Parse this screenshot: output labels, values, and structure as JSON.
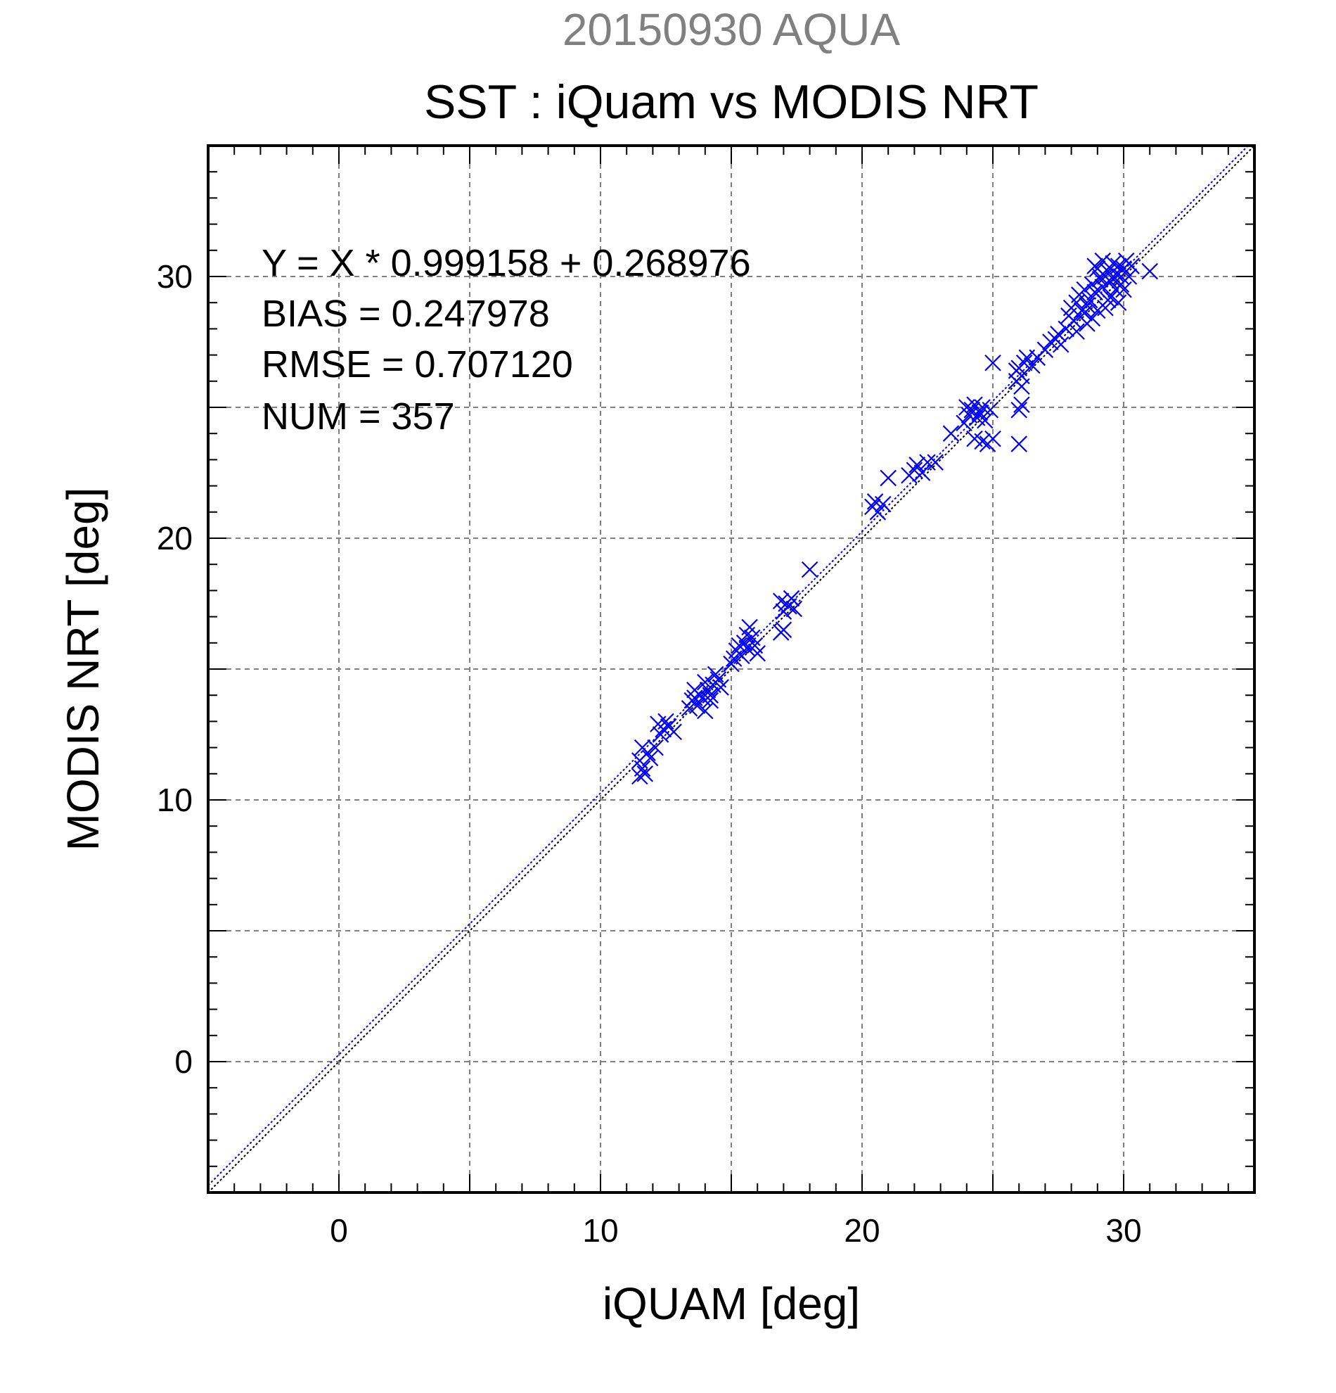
{
  "header": {
    "line1": "20150930 AQUA",
    "line2": "SST : iQuam vs MODIS NRT"
  },
  "stats": {
    "equation": "Y = X * 0.999158 + 0.268976",
    "bias": "BIAS = 0.247978",
    "rmse": "RMSE = 0.707120",
    "num": "NUM = 357"
  },
  "colors": {
    "points": "#0000ff",
    "fit_line": "#0000ff",
    "identity_line": "#000000",
    "grid": "#808080"
  },
  "chart_data": {
    "type": "scatter",
    "title": "SST : iQuam vs MODIS NRT",
    "subtitle": "20150930 AQUA",
    "xlabel": "iQUAM [deg]",
    "ylabel": "MODIS NRT [deg]",
    "xlim": [
      -5,
      35
    ],
    "ylim": [
      -5,
      35
    ],
    "xticks": [
      0,
      10,
      20,
      30
    ],
    "yticks": [
      0,
      10,
      20,
      30
    ],
    "grid": true,
    "grid_step": 5,
    "marker": "x",
    "fit": {
      "slope": 0.999158,
      "intercept": 0.268976
    },
    "identity_line": true,
    "points": [
      [
        11.5,
        10.9
      ],
      [
        11.6,
        11.2
      ],
      [
        11.5,
        11.5
      ],
      [
        11.7,
        11.0
      ],
      [
        11.8,
        11.8
      ],
      [
        11.6,
        12.0
      ],
      [
        11.9,
        11.6
      ],
      [
        12.1,
        12.0
      ],
      [
        12.4,
        12.7
      ],
      [
        12.5,
        13.0
      ],
      [
        12.6,
        12.8
      ],
      [
        12.3,
        12.5
      ],
      [
        12.8,
        12.6
      ],
      [
        12.2,
        12.9
      ],
      [
        13.4,
        13.5
      ],
      [
        13.5,
        13.8
      ],
      [
        13.6,
        14.2
      ],
      [
        13.7,
        13.6
      ],
      [
        13.8,
        14.0
      ],
      [
        13.9,
        13.9
      ],
      [
        14.0,
        14.5
      ],
      [
        14.1,
        14.2
      ],
      [
        14.2,
        14.0
      ],
      [
        14.3,
        14.4
      ],
      [
        14.4,
        14.8
      ],
      [
        14.5,
        14.6
      ],
      [
        14.0,
        13.4
      ],
      [
        14.2,
        13.8
      ],
      [
        13.6,
        13.9
      ],
      [
        14.6,
        14.3
      ],
      [
        15.1,
        15.4
      ],
      [
        15.2,
        15.7
      ],
      [
        15.3,
        15.9
      ],
      [
        15.4,
        15.5
      ],
      [
        15.5,
        16.0
      ],
      [
        15.6,
        15.8
      ],
      [
        15.8,
        16.2
      ],
      [
        15.7,
        16.6
      ],
      [
        15.0,
        15.2
      ],
      [
        15.9,
        15.9
      ],
      [
        16.0,
        15.6
      ],
      [
        15.6,
        16.3
      ],
      [
        16.9,
        16.4
      ],
      [
        17.0,
        16.5
      ],
      [
        17.0,
        17.2
      ],
      [
        17.1,
        17.5
      ],
      [
        16.9,
        17.6
      ],
      [
        17.2,
        17.4
      ],
      [
        17.3,
        17.7
      ],
      [
        17.4,
        17.3
      ],
      [
        18.0,
        18.8
      ],
      [
        20.4,
        21.2
      ],
      [
        20.5,
        21.4
      ],
      [
        20.6,
        21.0
      ],
      [
        20.8,
        21.3
      ],
      [
        21.0,
        22.3
      ],
      [
        21.8,
        22.4
      ],
      [
        22.0,
        22.6
      ],
      [
        22.1,
        22.8
      ],
      [
        22.3,
        22.5
      ],
      [
        22.5,
        22.9
      ],
      [
        22.8,
        22.9
      ],
      [
        23.4,
        24.0
      ],
      [
        23.9,
        24.4
      ],
      [
        24.0,
        25.0
      ],
      [
        24.1,
        24.7
      ],
      [
        24.2,
        24.9
      ],
      [
        24.3,
        25.1
      ],
      [
        24.4,
        24.6
      ],
      [
        24.5,
        24.8
      ],
      [
        24.6,
        25.0
      ],
      [
        24.3,
        23.8
      ],
      [
        24.6,
        23.7
      ],
      [
        24.8,
        23.6
      ],
      [
        25.0,
        23.8
      ],
      [
        24.9,
        24.9
      ],
      [
        24.7,
        24.5
      ],
      [
        25.0,
        26.7
      ],
      [
        25.9,
        26.0
      ],
      [
        26.0,
        26.5
      ],
      [
        26.1,
        26.2
      ],
      [
        26.2,
        26.7
      ],
      [
        26.3,
        26.9
      ],
      [
        26.1,
        25.8
      ],
      [
        25.9,
        26.4
      ],
      [
        26.0,
        24.9
      ],
      [
        26.1,
        25.1
      ],
      [
        26.0,
        23.6
      ],
      [
        26.5,
        26.6
      ],
      [
        26.7,
        26.9
      ],
      [
        27.0,
        27.2
      ],
      [
        27.2,
        27.5
      ],
      [
        27.4,
        27.6
      ],
      [
        27.5,
        27.8
      ],
      [
        27.6,
        27.4
      ],
      [
        27.8,
        28.0
      ],
      [
        27.9,
        28.5
      ],
      [
        28.0,
        28.8
      ],
      [
        28.1,
        28.3
      ],
      [
        28.2,
        29.0
      ],
      [
        28.3,
        29.3
      ],
      [
        28.4,
        28.7
      ],
      [
        28.5,
        29.5
      ],
      [
        28.6,
        28.9
      ],
      [
        28.7,
        29.1
      ],
      [
        28.8,
        29.7
      ],
      [
        28.9,
        29.4
      ],
      [
        29.0,
        30.3
      ],
      [
        29.1,
        29.9
      ],
      [
        29.2,
        29.6
      ],
      [
        29.3,
        30.0
      ],
      [
        29.4,
        30.2
      ],
      [
        29.5,
        29.8
      ],
      [
        29.6,
        30.5
      ],
      [
        29.7,
        30.1
      ],
      [
        29.8,
        30.4
      ],
      [
        29.9,
        29.7
      ],
      [
        30.0,
        30.3
      ],
      [
        30.1,
        30.6
      ],
      [
        30.2,
        30.0
      ],
      [
        29.5,
        29.2
      ],
      [
        29.7,
        29.5
      ],
      [
        29.9,
        30.0
      ],
      [
        29.0,
        28.7
      ],
      [
        28.8,
        28.4
      ],
      [
        29.3,
        28.8
      ],
      [
        28.6,
        28.2
      ],
      [
        29.8,
        29.0
      ],
      [
        30.3,
        30.4
      ],
      [
        31.0,
        30.2
      ],
      [
        28.2,
        27.9
      ],
      [
        28.9,
        30.4
      ],
      [
        29.1,
        30.0
      ],
      [
        29.4,
        29.1
      ],
      [
        28.5,
        28.6
      ],
      [
        29.6,
        29.9
      ],
      [
        30.0,
        29.5
      ],
      [
        29.2,
        30.6
      ]
    ]
  }
}
